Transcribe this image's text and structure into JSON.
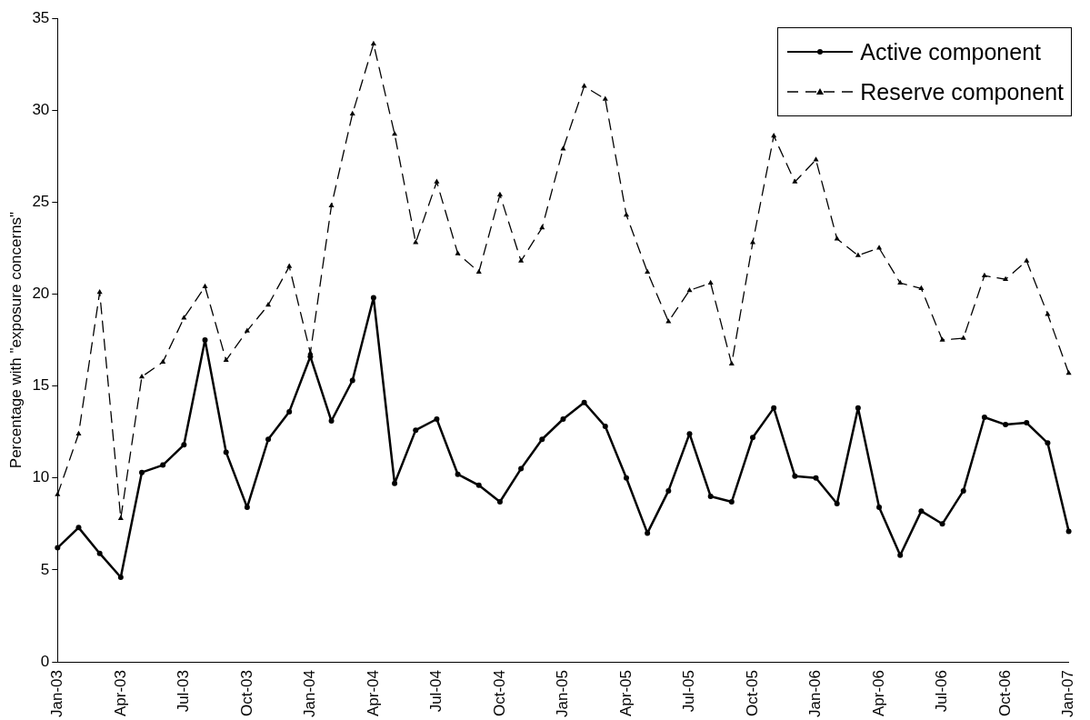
{
  "chart_data": {
    "type": "line",
    "ylabel": "Percentage with \"exposure concerns\"",
    "categories": [
      "Jan-03",
      null,
      null,
      "Apr-03",
      null,
      null,
      "Jul-03",
      null,
      null,
      "Oct-03",
      null,
      null,
      "Jan-04",
      null,
      null,
      "Apr-04",
      null,
      null,
      "Jul-04",
      null,
      null,
      "Oct-04",
      null,
      null,
      "Jan-05",
      null,
      null,
      "Apr-05",
      null,
      null,
      "Jul-05",
      null,
      null,
      "Oct-05",
      null,
      null,
      "Jan-06",
      null,
      null,
      "Apr-06",
      null,
      null,
      "Jul-06",
      null,
      null,
      "Oct-06",
      null,
      null,
      "Jan-07"
    ],
    "series": [
      {
        "name": "Active component",
        "color": "#000000",
        "marker": "circle",
        "line_style": "solid",
        "values": [
          6.2,
          7.3,
          5.9,
          4.6,
          10.3,
          10.7,
          11.8,
          17.5,
          11.4,
          8.4,
          12.1,
          13.6,
          16.6,
          13.1,
          15.3,
          19.8,
          9.7,
          12.6,
          13.2,
          10.2,
          9.6,
          8.7,
          10.5,
          12.1,
          13.2,
          14.1,
          12.8,
          10.0,
          7.0,
          9.3,
          12.4,
          9.0,
          8.7,
          12.2,
          13.8,
          10.1,
          10.0,
          8.6,
          13.8,
          8.4,
          5.8,
          8.2,
          7.5,
          9.3,
          13.3,
          12.9,
          13.0,
          11.9,
          7.1
        ]
      },
      {
        "name": "Reserve component",
        "color": "#000000",
        "marker": "triangle",
        "line_style": "dashed",
        "values": [
          9.1,
          12.4,
          20.1,
          7.8,
          15.5,
          16.3,
          18.7,
          20.4,
          16.4,
          18.0,
          19.4,
          21.5,
          16.8,
          24.8,
          29.8,
          33.6,
          28.7,
          22.8,
          26.1,
          22.2,
          21.2,
          25.4,
          21.8,
          23.6,
          27.9,
          31.3,
          30.6,
          24.3,
          21.2,
          18.5,
          20.2,
          20.6,
          16.2,
          22.8,
          28.6,
          26.1,
          27.3,
          23.0,
          22.1,
          22.5,
          20.6,
          20.3,
          17.5,
          17.6,
          21.0,
          20.8,
          21.8,
          18.9,
          15.7
        ]
      }
    ],
    "ylim": [
      0,
      35
    ],
    "yticks": [
      0,
      5,
      10,
      15,
      20,
      25,
      30,
      35
    ],
    "grid": false,
    "legend": "top right"
  }
}
